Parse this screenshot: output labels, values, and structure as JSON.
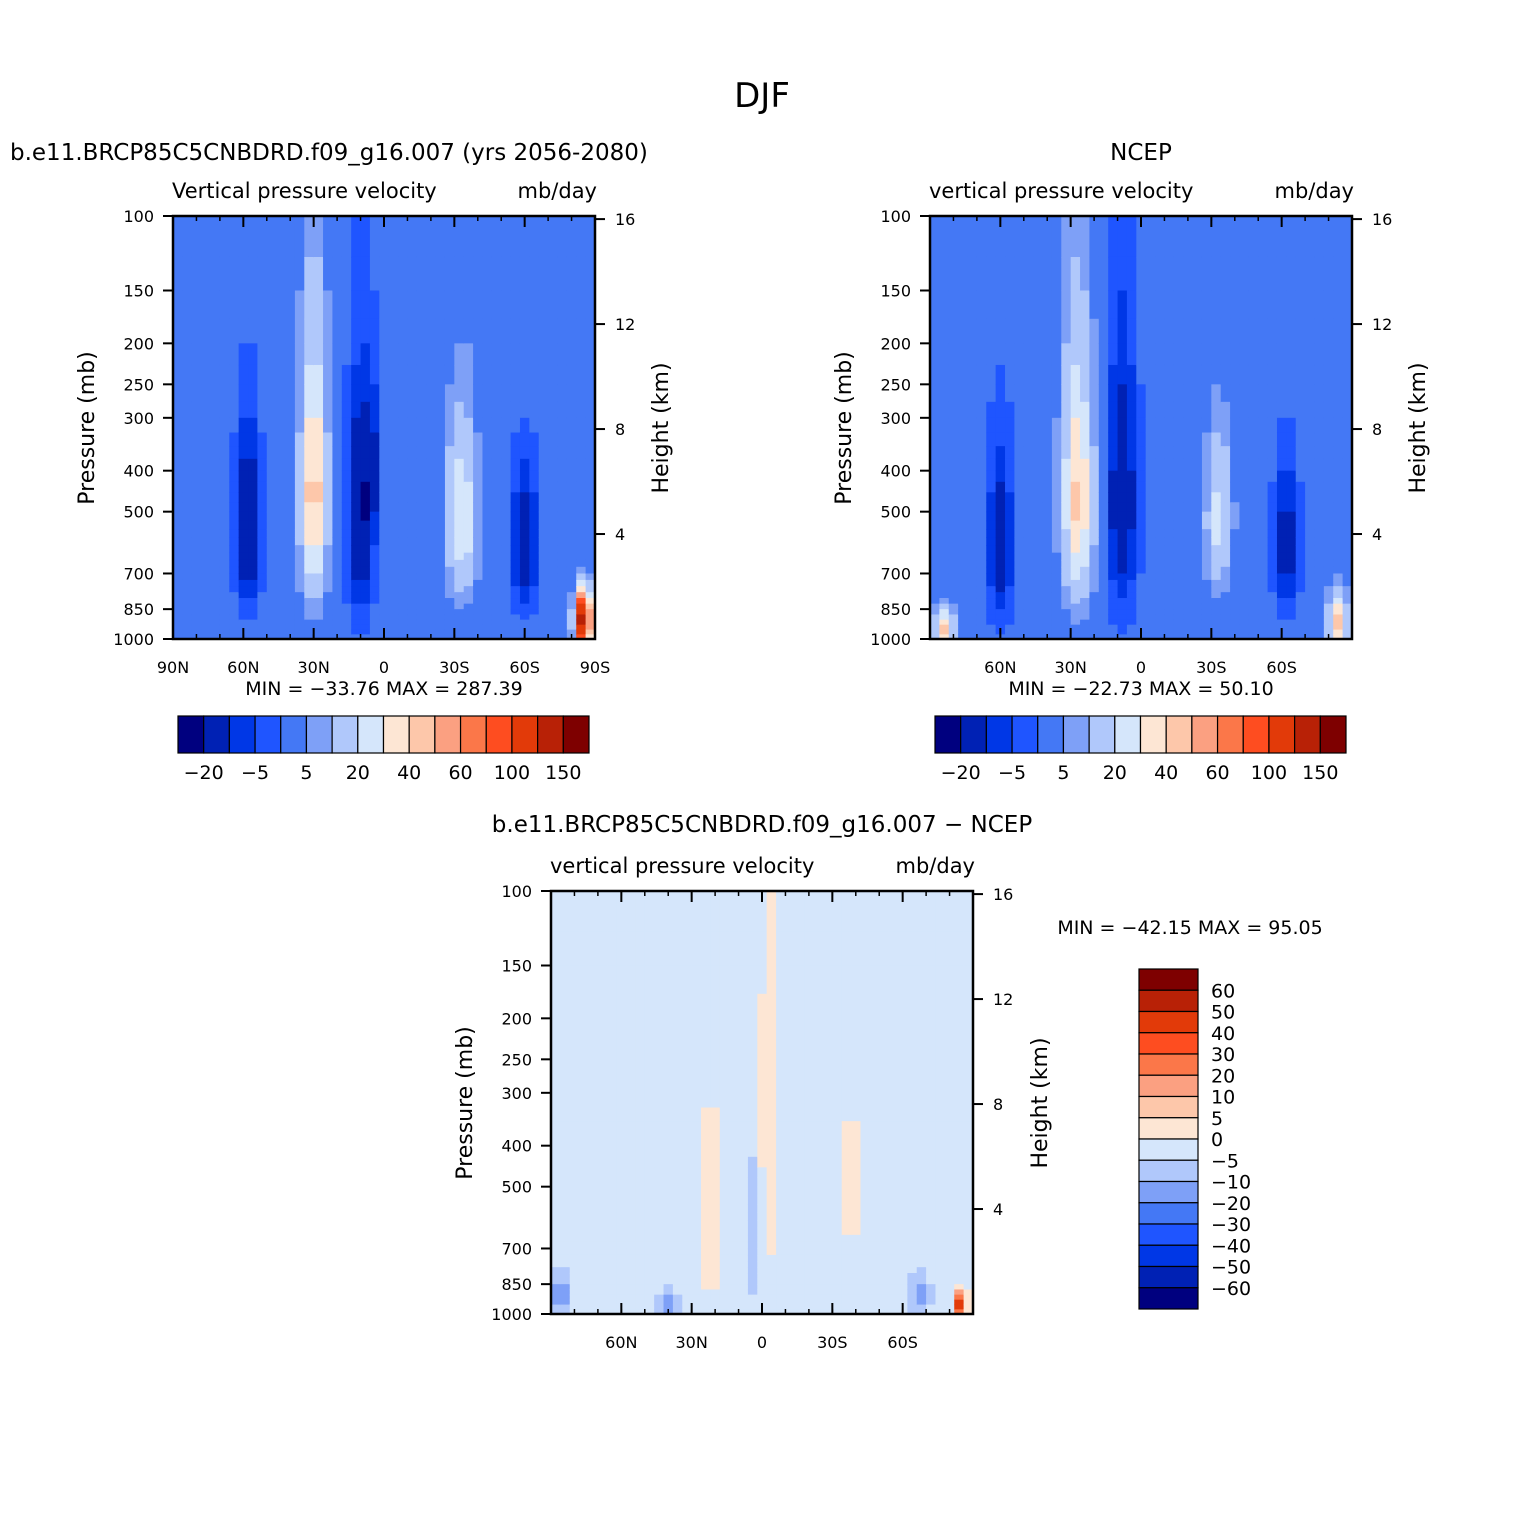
{
  "figure": {
    "title": "DJF"
  },
  "chart_data": [
    {
      "type": "heatmap",
      "title": "b.e11.BRCP85C5CNBDRD.f09_g16.007 (yrs 2056-2080)",
      "subtitle_left": "Vertical pressure velocity",
      "subtitle_right": "mb/day",
      "ylabel": "Pressure (mb)",
      "ylabel_right": "Height (km)",
      "x_range": [
        90,
        -90
      ],
      "x_ticks": [
        90,
        60,
        30,
        0,
        -30,
        -60,
        -90
      ],
      "x_tick_labels": [
        "90N",
        "60N",
        "30N",
        "0",
        "30S",
        "60S",
        "90S"
      ],
      "y_ticks": [
        100,
        150,
        200,
        250,
        300,
        400,
        500,
        700,
        850,
        1000
      ],
      "height_ticks": [
        4,
        8,
        12,
        16
      ],
      "min_max_text": "MIN = −33.76   MAX = 287.39",
      "colorbar": {
        "orientation": "horizontal",
        "labels": [
          "−20",
          "−5",
          "5",
          "20",
          "40",
          "60",
          "100",
          "150"
        ],
        "colors": [
          "#00007f",
          "#0021b4",
          "#0037e6",
          "#1f55ff",
          "#4478f5",
          "#7ea0f7",
          "#b0c8fb",
          "#d5e6fb",
          "#fde6d4",
          "#fdc7aa",
          "#fba081",
          "#fb7749",
          "#fe4d20",
          "#e23a09",
          "#b82106",
          "#7e0000"
        ]
      },
      "field": {
        "dx": 4,
        "dp": 25,
        "features": [
          {
            "lat": 58,
            "p": 550,
            "lw": 5,
            "pw": 230,
            "v": -24
          },
          {
            "lat": 30,
            "p": 460,
            "lw": 5,
            "pw": 270,
            "v": 45
          },
          {
            "lat": 10,
            "p": 520,
            "lw": 5,
            "pw": 300,
            "v": -23
          },
          {
            "lat": 5,
            "p": 400,
            "lw": 3,
            "pw": 150,
            "v": -12
          },
          {
            "lat": -33,
            "p": 520,
            "lw": 6,
            "pw": 220,
            "v": 28
          },
          {
            "lat": -60,
            "p": 600,
            "lw": 5,
            "pw": 200,
            "v": -22
          },
          {
            "lat": -85,
            "p": 900,
            "lw": 3,
            "pw": 120,
            "v": 150
          }
        ]
      }
    },
    {
      "type": "heatmap",
      "title": "NCEP",
      "subtitle_left": "vertical pressure velocity",
      "subtitle_right": "mb/day",
      "ylabel": "Pressure (mb)",
      "ylabel_right": "Height (km)",
      "x_range": [
        90,
        -90
      ],
      "x_ticks": [
        60,
        30,
        0,
        -30,
        -60
      ],
      "x_tick_labels": [
        "60N",
        "30N",
        "0",
        "30S",
        "60S"
      ],
      "y_ticks": [
        100,
        150,
        200,
        250,
        300,
        400,
        500,
        700,
        850,
        1000
      ],
      "height_ticks": [
        4,
        8,
        12,
        16
      ],
      "min_max_text": "MIN = −22.73   MAX =   50.10",
      "colorbar": {
        "orientation": "horizontal",
        "labels": [
          "−20",
          "−5",
          "5",
          "20",
          "40",
          "60",
          "100",
          "150"
        ],
        "colors": [
          "#00007f",
          "#0021b4",
          "#0037e6",
          "#1f55ff",
          "#4478f5",
          "#7ea0f7",
          "#b0c8fb",
          "#d5e6fb",
          "#fde6d4",
          "#fdc7aa",
          "#fba081",
          "#fb7749",
          "#fe4d20",
          "#e23a09",
          "#b82106",
          "#7e0000"
        ]
      },
      "field": {
        "dx": 4,
        "dp": 25,
        "features": [
          {
            "lat": 60,
            "p": 600,
            "lw": 5,
            "pw": 250,
            "v": -20
          },
          {
            "lat": 27,
            "p": 470,
            "lw": 6,
            "pw": 280,
            "v": 40
          },
          {
            "lat": 8,
            "p": 480,
            "lw": 6,
            "pw": 320,
            "v": -20
          },
          {
            "lat": -33,
            "p": 520,
            "lw": 5,
            "pw": 200,
            "v": 22
          },
          {
            "lat": -62,
            "p": 600,
            "lw": 5,
            "pw": 220,
            "v": -17
          },
          {
            "lat": 84,
            "p": 950,
            "lw": 4,
            "pw": 100,
            "v": 40
          },
          {
            "lat": -84,
            "p": 920,
            "lw": 4,
            "pw": 130,
            "v": 42
          }
        ]
      }
    },
    {
      "type": "heatmap",
      "title": "b.e11.BRCP85C5CNBDRD.f09_g16.007 − NCEP",
      "subtitle_left": "vertical pressure velocity",
      "subtitle_right": "mb/day",
      "ylabel": "Pressure (mb)",
      "ylabel_right": "Height (km)",
      "x_range": [
        90,
        -90
      ],
      "x_ticks": [
        60,
        30,
        0,
        -30,
        -60
      ],
      "x_tick_labels": [
        "60N",
        "30N",
        "0",
        "30S",
        "60S"
      ],
      "y_ticks": [
        100,
        150,
        200,
        250,
        300,
        400,
        500,
        700,
        850,
        1000
      ],
      "height_ticks": [
        4,
        8,
        12,
        16
      ],
      "min_max_text": "MIN = −42.15   MAX =   95.05",
      "colorbar": {
        "orientation": "vertical",
        "labels": [
          "60",
          "50",
          "40",
          "30",
          "20",
          "10",
          "5",
          "0",
          "−5",
          "−10",
          "−20",
          "−30",
          "−40",
          "−50",
          "−60"
        ],
        "colors": [
          "#7e0000",
          "#b82106",
          "#e23a09",
          "#fe4d20",
          "#fb7749",
          "#fba081",
          "#fdc7aa",
          "#fde6d4",
          "#d5e6fb",
          "#b0c8fb",
          "#7ea0f7",
          "#4478f5",
          "#1f55ff",
          "#0037e6",
          "#0021b4",
          "#00007f"
        ]
      },
      "field": {
        "dx": 4,
        "dp": 25,
        "features": [
          {
            "lat": 86,
            "p": 900,
            "lw": 4,
            "pw": 120,
            "v": -12
          },
          {
            "lat": 40,
            "p": 950,
            "lw": 4,
            "pw": 80,
            "v": -12
          },
          {
            "lat": 22,
            "p": 600,
            "lw": 6,
            "pw": 350,
            "v": 4
          },
          {
            "lat": 4,
            "p": 650,
            "lw": 3,
            "pw": 250,
            "v": -8
          },
          {
            "lat": -3,
            "p": 400,
            "lw": 5,
            "pw": 400,
            "v": 4
          },
          {
            "lat": -38,
            "p": 500,
            "lw": 5,
            "pw": 300,
            "v": 3
          },
          {
            "lat": -67,
            "p": 900,
            "lw": 5,
            "pw": 120,
            "v": -10
          },
          {
            "lat": -85,
            "p": 950,
            "lw": 2,
            "pw": 60,
            "v": 60
          }
        ]
      }
    }
  ]
}
